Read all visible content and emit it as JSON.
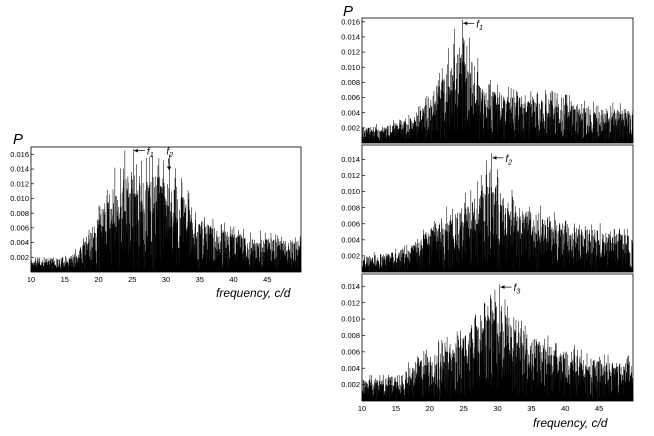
{
  "chart_data": [
    {
      "type": "line",
      "panel": "combined",
      "ylabel": "P",
      "xlabel": "frequency, c/d",
      "xlim": [
        10,
        50
      ],
      "ylim": [
        0,
        0.017
      ],
      "xticks": [
        "10",
        "15",
        "20",
        "25",
        "30",
        "35",
        "40",
        "45"
      ],
      "yticks": [
        "0.002",
        "0.004",
        "0.006",
        "0.008",
        "0.010",
        "0.012",
        "0.014",
        "0.016"
      ],
      "series": [
        {
          "envelope_x": [
            10,
            14,
            16,
            17,
            18,
            19,
            20,
            21,
            22,
            23,
            24,
            25,
            26,
            27,
            28,
            29,
            30,
            31,
            32,
            33,
            34,
            35,
            36,
            38,
            40,
            42,
            44,
            46,
            48,
            50
          ],
          "envelope_y": [
            0.0015,
            0.0017,
            0.002,
            0.0026,
            0.0038,
            0.0052,
            0.0068,
            0.0082,
            0.0096,
            0.0108,
            0.0118,
            0.0122,
            0.0118,
            0.0116,
            0.0118,
            0.0117,
            0.0113,
            0.0106,
            0.0097,
            0.0087,
            0.0078,
            0.0068,
            0.006,
            0.0052,
            0.0047,
            0.0043,
            0.0042,
            0.004,
            0.0039,
            0.0038
          ],
          "peaks": [
            [
              23.9,
              0.0165
            ],
            [
              25.2,
              0.0168
            ],
            [
              26.4,
              0.0151
            ],
            [
              27.6,
              0.0156
            ],
            [
              28.8,
              0.0145
            ],
            [
              29.6,
              0.0152
            ],
            [
              30.5,
              0.016
            ],
            [
              31.4,
              0.0141
            ],
            [
              32.3,
              0.0128
            ],
            [
              22.4,
              0.0142
            ]
          ]
        }
      ],
      "annotations": [
        {
          "label": "f",
          "sub": "1",
          "x": 25.1,
          "y": 0.0165
        },
        {
          "label": "f",
          "sub": "2",
          "x": 30.5,
          "y": 0.0138
        }
      ]
    },
    {
      "type": "line",
      "panel": "f1",
      "ylabel": "P",
      "xlim": [
        10,
        50
      ],
      "ylim": [
        0,
        0.0165
      ],
      "yticks": [
        "0.002",
        "0.004",
        "0.006",
        "0.008",
        "0.010",
        "0.012",
        "0.014",
        "0.016"
      ],
      "series": [
        {
          "envelope_x": [
            10,
            14,
            17,
            19,
            20,
            21,
            22,
            23,
            24,
            25,
            26,
            27,
            28,
            29,
            30,
            32,
            34,
            36,
            38,
            40,
            42,
            44,
            46,
            48,
            50
          ],
          "envelope_y": [
            0.0018,
            0.0021,
            0.0028,
            0.0042,
            0.005,
            0.0064,
            0.0078,
            0.0092,
            0.0106,
            0.0103,
            0.0087,
            0.0072,
            0.0066,
            0.0063,
            0.0059,
            0.0054,
            0.0054,
            0.0053,
            0.0052,
            0.0049,
            0.0044,
            0.0041,
            0.004,
            0.0039,
            0.0038
          ],
          "peaks": [
            [
              24.8,
              0.0163
            ],
            [
              23.7,
              0.0151
            ],
            [
              25.9,
              0.0139
            ],
            [
              22.8,
              0.0125
            ],
            [
              27.1,
              0.0112
            ]
          ]
        }
      ],
      "annotations": [
        {
          "label": "f",
          "sub": "1",
          "x": 24.8,
          "y": 0.0158
        }
      ]
    },
    {
      "type": "line",
      "panel": "f2",
      "xlim": [
        10,
        50
      ],
      "ylim": [
        0,
        0.0158
      ],
      "yticks": [
        "0.002",
        "0.004",
        "0.006",
        "0.008",
        "0.010",
        "0.012",
        "0.014"
      ],
      "series": [
        {
          "envelope_x": [
            10,
            14,
            17,
            19,
            21,
            23,
            25,
            26,
            27,
            28,
            29,
            30,
            31,
            32,
            34,
            36,
            38,
            40,
            42,
            44,
            46,
            48,
            50
          ],
          "envelope_y": [
            0.0017,
            0.0021,
            0.0028,
            0.0041,
            0.0055,
            0.0064,
            0.0072,
            0.0076,
            0.0084,
            0.0094,
            0.0103,
            0.0096,
            0.0084,
            0.0076,
            0.007,
            0.0064,
            0.006,
            0.0055,
            0.005,
            0.0047,
            0.0044,
            0.0042,
            0.0041
          ],
          "peaks": [
            [
              29.1,
              0.0148
            ],
            [
              28.4,
              0.0139
            ],
            [
              30.0,
              0.0128
            ],
            [
              27.6,
              0.0119
            ]
          ]
        }
      ],
      "annotations": [
        {
          "label": "f",
          "sub": "2",
          "x": 29.1,
          "y": 0.0142
        }
      ]
    },
    {
      "type": "line",
      "panel": "f3",
      "xlabel": "frequency, c/d",
      "xlim": [
        10,
        50
      ],
      "ylim": [
        0,
        0.0155
      ],
      "xticks": [
        "10",
        "15",
        "20",
        "25",
        "30",
        "35",
        "40",
        "45"
      ],
      "yticks": [
        "0.002",
        "0.004",
        "0.006",
        "0.008",
        "0.010",
        "0.012",
        "0.014"
      ],
      "series": [
        {
          "envelope_x": [
            10,
            14,
            16,
            17,
            19,
            21,
            23,
            25,
            27,
            28,
            29,
            30,
            31,
            32,
            34,
            36,
            38,
            40,
            42,
            44,
            46,
            48,
            50
          ],
          "envelope_y": [
            0.0023,
            0.0026,
            0.0029,
            0.0037,
            0.0046,
            0.0054,
            0.0062,
            0.0071,
            0.0081,
            0.0089,
            0.0098,
            0.0106,
            0.0097,
            0.0086,
            0.0077,
            0.0067,
            0.0059,
            0.0054,
            0.005,
            0.0046,
            0.0044,
            0.0042,
            0.0041
          ],
          "peaks": [
            [
              30.3,
              0.0142
            ],
            [
              29.6,
              0.0136
            ],
            [
              31.1,
              0.0124
            ],
            [
              28.6,
              0.0116
            ]
          ]
        }
      ],
      "annotations": [
        {
          "label": "f",
          "sub": "3",
          "x": 30.3,
          "y": 0.0139
        }
      ]
    }
  ]
}
